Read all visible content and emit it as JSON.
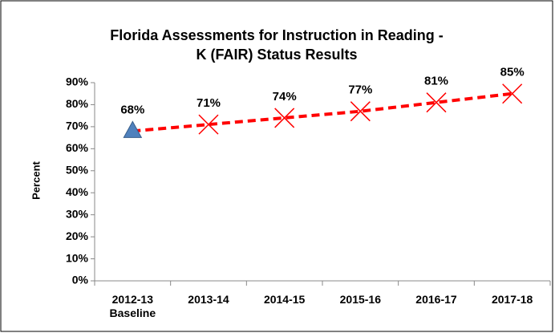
{
  "chart_data": {
    "type": "line",
    "title": "Florida Assessments for Instruction in Reading -",
    "subtitle": "K (FAIR) Status Results",
    "y_label": "Percent",
    "categories": [
      "2012-13 Baseline",
      "2013-14",
      "2014-15",
      "2015-16",
      "2016-17",
      "2017-18"
    ],
    "series": [
      {
        "color": "#ff0000",
        "marker_colors": [
          "#4f81bd",
          "#ff0000",
          "#ff0000",
          "#ff0000",
          "#ff0000",
          "#ff0000"
        ],
        "label_colors": [
          "#376092",
          "#ff0000",
          "#ff0000",
          "#ff0000",
          "#ff0000",
          "#ff0000"
        ],
        "values": [
          68,
          71,
          74,
          77,
          81,
          85
        ],
        "value_labels": [
          "68%",
          "71%",
          "74%",
          "77%",
          "81%",
          "85%"
        ]
      }
    ],
    "ylim": [
      0,
      90
    ],
    "yticks": [
      {
        "value": 0,
        "label": "0%"
      },
      {
        "value": 10,
        "label": "10%"
      },
      {
        "value": 20,
        "label": "20%"
      },
      {
        "value": 30,
        "label": "30%"
      },
      {
        "value": 40,
        "label": "40%"
      },
      {
        "value": 50,
        "label": "50%"
      },
      {
        "value": 60,
        "label": "60%"
      },
      {
        "value": 70,
        "label": "70%"
      },
      {
        "value": 80,
        "label": "80%"
      },
      {
        "value": 90,
        "label": "90%"
      }
    ],
    "grid": false
  }
}
